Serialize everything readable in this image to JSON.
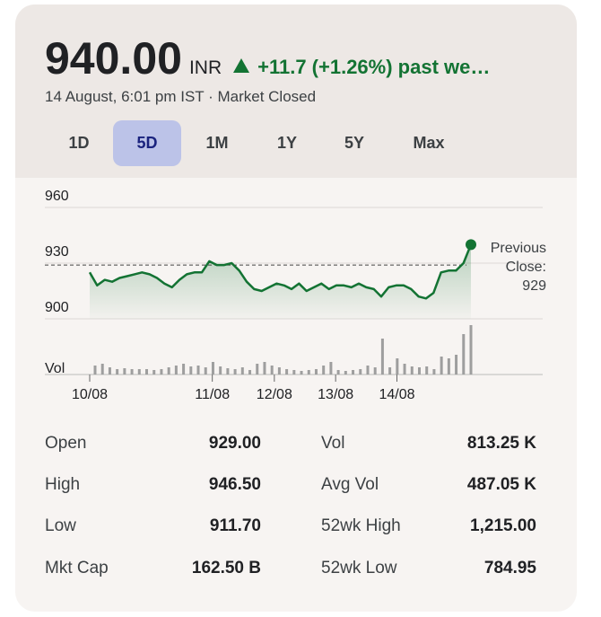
{
  "header": {
    "price": "940.00",
    "currency": "INR",
    "change": "+11.7 (+1.26%) past we…",
    "timestamp": "14 August, 6:01 pm IST · Market Closed"
  },
  "tabs": {
    "items": [
      "1D",
      "5D",
      "1M",
      "1Y",
      "5Y",
      "Max"
    ],
    "selected": 1
  },
  "chart_data": {
    "type": "line",
    "color": "#137333",
    "grid": true,
    "ylim": [
      900,
      960
    ],
    "yticks": [
      900,
      930,
      960
    ],
    "values": [
      925,
      918,
      921,
      920,
      922,
      923,
      924,
      925,
      924,
      922,
      919,
      917,
      921,
      924,
      925,
      925,
      931,
      929,
      929,
      930,
      926,
      920,
      916,
      915,
      917,
      919,
      918,
      916,
      919,
      915,
      917,
      919,
      916,
      918,
      918,
      917,
      919,
      917,
      916,
      912,
      917,
      918,
      918,
      916,
      912,
      911,
      914,
      925,
      926,
      926,
      930,
      940
    ],
    "xticks": [
      {
        "value": 0,
        "label": "10/08"
      },
      {
        "value": 16.4,
        "label": "11/08"
      },
      {
        "value": 24.7,
        "label": "12/08"
      },
      {
        "value": 32.9,
        "label": "13/08"
      },
      {
        "value": 41.1,
        "label": "14/08"
      }
    ],
    "previous_close": 929,
    "previous_close_label": "Previous Close:",
    "volume": {
      "name": "Vol",
      "color": "#9e9e9e",
      "ylim": [
        0,
        60
      ],
      "values": [
        10,
        12,
        8,
        6,
        7,
        6,
        6,
        6,
        5,
        6,
        8,
        10,
        12,
        9,
        10,
        8,
        14,
        9,
        7,
        6,
        8,
        5,
        12,
        14,
        10,
        8,
        6,
        5,
        4,
        5,
        6,
        10,
        14,
        5,
        4,
        5,
        6,
        10,
        8,
        40,
        8,
        18,
        12,
        9,
        8,
        9,
        6,
        20,
        18,
        22,
        45,
        55
      ]
    }
  },
  "stats": {
    "rows": [
      [
        "Open",
        "929.00",
        "Vol",
        "813.25 K"
      ],
      [
        "High",
        "946.50",
        "Avg Vol",
        "487.05 K"
      ],
      [
        "Low",
        "911.70",
        "52wk High",
        "1,215.00"
      ],
      [
        "Mkt Cap",
        "162.50 B",
        "52wk Low",
        "784.95"
      ]
    ]
  }
}
